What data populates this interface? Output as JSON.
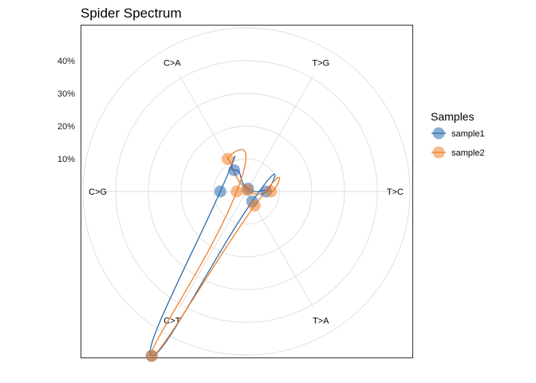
{
  "chart_data": {
    "type": "radar",
    "title": "Spider Spectrum",
    "categories": [
      "C>A",
      "T>G",
      "T>C",
      "T>A",
      "C>T",
      "C>G"
    ],
    "radial_ticks": [
      "10%",
      "20%",
      "30%",
      "40%"
    ],
    "radial_tick_values": [
      0.1,
      0.2,
      0.3,
      0.4
    ],
    "rmax": 0.4,
    "grid": true,
    "legend": {
      "title": "Samples",
      "position": "right"
    },
    "series": [
      {
        "name": "sample1",
        "color": "#2b6cb0",
        "values": [
          0.075,
          0.01,
          0.06,
          0.035,
          0.58,
          0.08
        ]
      },
      {
        "name": "sample2",
        "color": "#f07f2a",
        "values": [
          0.115,
          0.005,
          0.075,
          0.05,
          0.58,
          0.03
        ]
      }
    ]
  }
}
